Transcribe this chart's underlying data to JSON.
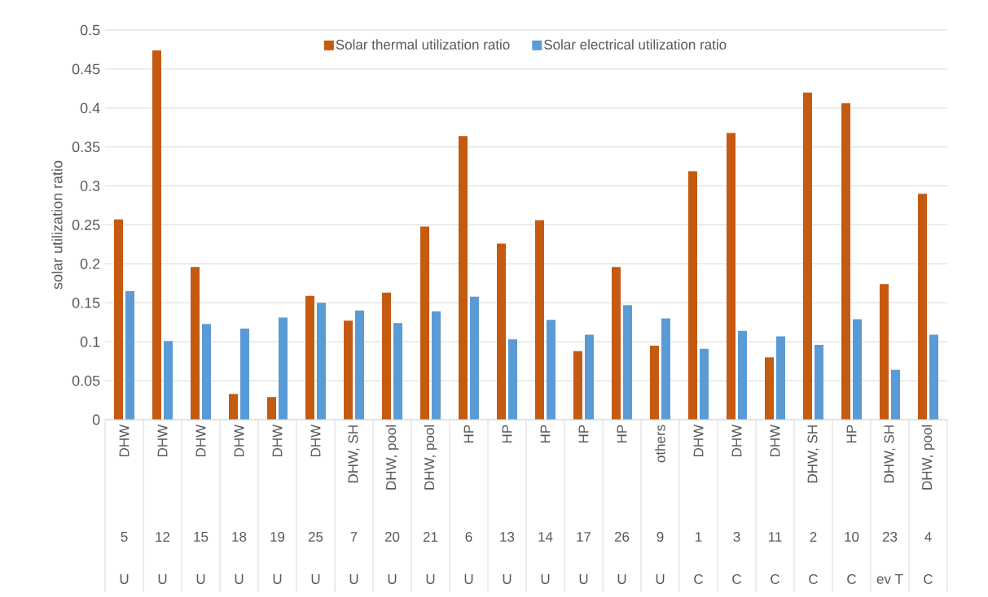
{
  "chart_data": {
    "type": "bar",
    "ylabel": "solar utilization ratio",
    "categories": [
      "DHW",
      "DHW",
      "DHW",
      "DHW",
      "DHW",
      "DHW",
      "DHW, SH",
      "DHW, pool",
      "DHW, pool",
      "HP",
      "HP",
      "HP",
      "HP",
      "HP",
      "others",
      "DHW",
      "DHW",
      "DHW",
      "DHW, SH",
      "HP",
      "DHW, SH",
      "DHW, pool"
    ],
    "series": [
      {
        "name": "Solar thermal utilization ratio",
        "color": "#c55a11",
        "values": [
          0.257,
          0.474,
          0.196,
          0.033,
          0.029,
          0.159,
          0.127,
          0.163,
          0.248,
          0.364,
          0.226,
          0.256,
          0.088,
          0.196,
          0.095,
          0.319,
          0.368,
          0.08,
          0.42,
          0.406,
          0.174,
          0.29
        ]
      },
      {
        "name": "Solar electrical utilization ratio",
        "color": "#5b9bd5",
        "values": [
          0.165,
          0.101,
          0.123,
          0.117,
          0.131,
          0.15,
          0.14,
          0.124,
          0.139,
          0.158,
          0.103,
          0.128,
          0.109,
          0.147,
          0.13,
          0.091,
          0.114,
          0.107,
          0.096,
          0.129,
          0.064,
          0.109
        ]
      }
    ],
    "ylim": [
      0,
      0.5
    ],
    "yticks": [
      0,
      0.05,
      0.1,
      0.15,
      0.2,
      0.25,
      0.3,
      0.35,
      0.4,
      0.45,
      0.5
    ],
    "grid": "y",
    "legend": "top",
    "annotations": [
      "5",
      "12",
      "15",
      "18",
      "19",
      "25",
      "7",
      "20",
      "21",
      "6",
      "13",
      "14",
      "17",
      "26",
      "9",
      "1",
      "3",
      "11",
      "2",
      "10",
      "23",
      "4",
      "U",
      "U",
      "U",
      "U",
      "U",
      "U",
      "U",
      "U",
      "U",
      "U",
      "U",
      "U",
      "U",
      "U",
      "U",
      "C",
      "C",
      "C",
      "C",
      "C",
      "ev T",
      "C"
    ]
  }
}
